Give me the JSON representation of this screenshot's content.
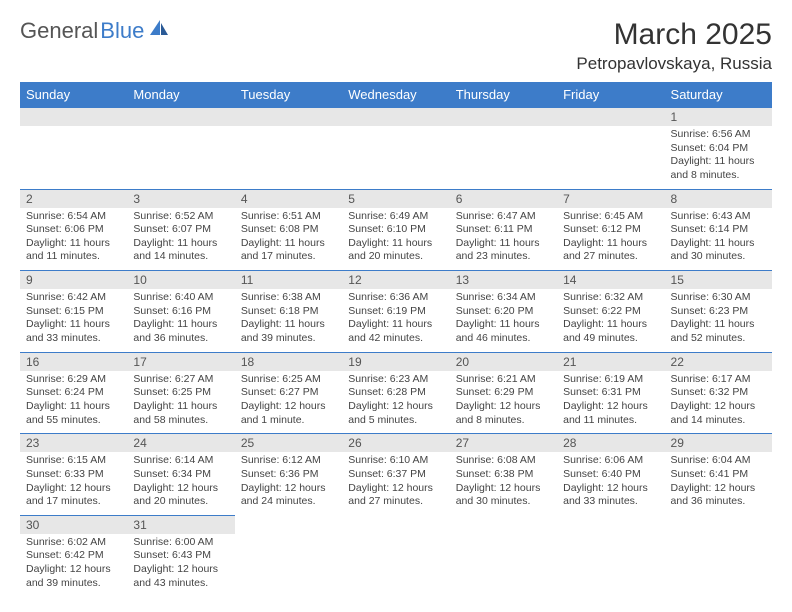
{
  "logo": {
    "part1": "General",
    "part2": "Blue"
  },
  "title": "March 2025",
  "location": "Petropavlovskaya, Russia",
  "colors": {
    "header_bg": "#3d7cc9",
    "header_text": "#ffffff",
    "daynum_bg": "#e7e7e7",
    "border": "#3d7cc9",
    "text": "#444444"
  },
  "day_headers": [
    "Sunday",
    "Monday",
    "Tuesday",
    "Wednesday",
    "Thursday",
    "Friday",
    "Saturday"
  ],
  "weeks": [
    [
      null,
      null,
      null,
      null,
      null,
      null,
      {
        "n": "1",
        "sr": "6:56 AM",
        "ss": "6:04 PM",
        "dl": "11 hours and 8 minutes."
      }
    ],
    [
      {
        "n": "2",
        "sr": "6:54 AM",
        "ss": "6:06 PM",
        "dl": "11 hours and 11 minutes."
      },
      {
        "n": "3",
        "sr": "6:52 AM",
        "ss": "6:07 PM",
        "dl": "11 hours and 14 minutes."
      },
      {
        "n": "4",
        "sr": "6:51 AM",
        "ss": "6:08 PM",
        "dl": "11 hours and 17 minutes."
      },
      {
        "n": "5",
        "sr": "6:49 AM",
        "ss": "6:10 PM",
        "dl": "11 hours and 20 minutes."
      },
      {
        "n": "6",
        "sr": "6:47 AM",
        "ss": "6:11 PM",
        "dl": "11 hours and 23 minutes."
      },
      {
        "n": "7",
        "sr": "6:45 AM",
        "ss": "6:12 PM",
        "dl": "11 hours and 27 minutes."
      },
      {
        "n": "8",
        "sr": "6:43 AM",
        "ss": "6:14 PM",
        "dl": "11 hours and 30 minutes."
      }
    ],
    [
      {
        "n": "9",
        "sr": "6:42 AM",
        "ss": "6:15 PM",
        "dl": "11 hours and 33 minutes."
      },
      {
        "n": "10",
        "sr": "6:40 AM",
        "ss": "6:16 PM",
        "dl": "11 hours and 36 minutes."
      },
      {
        "n": "11",
        "sr": "6:38 AM",
        "ss": "6:18 PM",
        "dl": "11 hours and 39 minutes."
      },
      {
        "n": "12",
        "sr": "6:36 AM",
        "ss": "6:19 PM",
        "dl": "11 hours and 42 minutes."
      },
      {
        "n": "13",
        "sr": "6:34 AM",
        "ss": "6:20 PM",
        "dl": "11 hours and 46 minutes."
      },
      {
        "n": "14",
        "sr": "6:32 AM",
        "ss": "6:22 PM",
        "dl": "11 hours and 49 minutes."
      },
      {
        "n": "15",
        "sr": "6:30 AM",
        "ss": "6:23 PM",
        "dl": "11 hours and 52 minutes."
      }
    ],
    [
      {
        "n": "16",
        "sr": "6:29 AM",
        "ss": "6:24 PM",
        "dl": "11 hours and 55 minutes."
      },
      {
        "n": "17",
        "sr": "6:27 AM",
        "ss": "6:25 PM",
        "dl": "11 hours and 58 minutes."
      },
      {
        "n": "18",
        "sr": "6:25 AM",
        "ss": "6:27 PM",
        "dl": "12 hours and 1 minute."
      },
      {
        "n": "19",
        "sr": "6:23 AM",
        "ss": "6:28 PM",
        "dl": "12 hours and 5 minutes."
      },
      {
        "n": "20",
        "sr": "6:21 AM",
        "ss": "6:29 PM",
        "dl": "12 hours and 8 minutes."
      },
      {
        "n": "21",
        "sr": "6:19 AM",
        "ss": "6:31 PM",
        "dl": "12 hours and 11 minutes."
      },
      {
        "n": "22",
        "sr": "6:17 AM",
        "ss": "6:32 PM",
        "dl": "12 hours and 14 minutes."
      }
    ],
    [
      {
        "n": "23",
        "sr": "6:15 AM",
        "ss": "6:33 PM",
        "dl": "12 hours and 17 minutes."
      },
      {
        "n": "24",
        "sr": "6:14 AM",
        "ss": "6:34 PM",
        "dl": "12 hours and 20 minutes."
      },
      {
        "n": "25",
        "sr": "6:12 AM",
        "ss": "6:36 PM",
        "dl": "12 hours and 24 minutes."
      },
      {
        "n": "26",
        "sr": "6:10 AM",
        "ss": "6:37 PM",
        "dl": "12 hours and 27 minutes."
      },
      {
        "n": "27",
        "sr": "6:08 AM",
        "ss": "6:38 PM",
        "dl": "12 hours and 30 minutes."
      },
      {
        "n": "28",
        "sr": "6:06 AM",
        "ss": "6:40 PM",
        "dl": "12 hours and 33 minutes."
      },
      {
        "n": "29",
        "sr": "6:04 AM",
        "ss": "6:41 PM",
        "dl": "12 hours and 36 minutes."
      }
    ],
    [
      {
        "n": "30",
        "sr": "6:02 AM",
        "ss": "6:42 PM",
        "dl": "12 hours and 39 minutes."
      },
      {
        "n": "31",
        "sr": "6:00 AM",
        "ss": "6:43 PM",
        "dl": "12 hours and 43 minutes."
      },
      null,
      null,
      null,
      null,
      null
    ]
  ],
  "labels": {
    "sunrise": "Sunrise:",
    "sunset": "Sunset:",
    "daylight": "Daylight:"
  }
}
